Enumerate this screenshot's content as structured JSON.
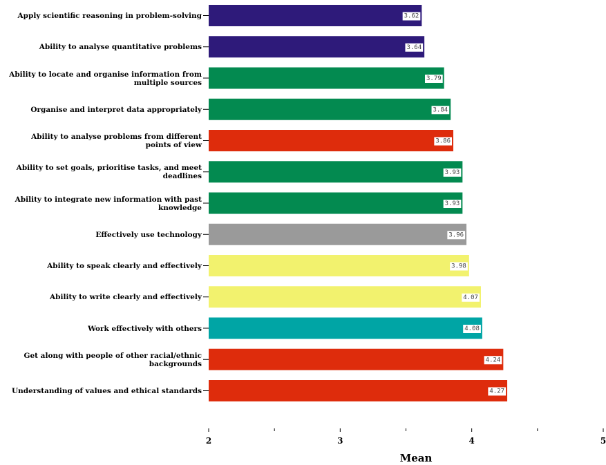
{
  "chart_data": {
    "type": "bar",
    "orientation": "horizontal",
    "x_label": "Mean",
    "categories": [
      "Apply scientific reasoning in problem-solving",
      "Ability to analyse quantitative problems",
      "Ability to locate and organise information from multiple sources",
      "Organise and interpret data appropriately",
      "Ability to analyse problems from different points of view",
      "Ability to set goals, prioritise tasks, and meet deadlines",
      "Ability to integrate new information with past knowledge",
      "Effectively use technology",
      "Ability to speak clearly and effectively",
      "Ability to write clearly and effectively",
      "Work effectively with others",
      "Get along with people of other racial/ethnic backgrounds",
      "Understanding of values and ethical standards"
    ],
    "values": [
      3.62,
      3.64,
      3.79,
      3.84,
      3.86,
      3.93,
      3.93,
      3.96,
      3.98,
      4.07,
      4.08,
      4.24,
      4.27
    ],
    "colors": [
      "#2e1a7a",
      "#2e1a7a",
      "#038a50",
      "#038a50",
      "#de2c0c",
      "#038a50",
      "#038a50",
      "#9a9a9a",
      "#f2f26e",
      "#f2f26e",
      "#00a5a5",
      "#de2c0c",
      "#de2c0c"
    ],
    "xlim": [
      2,
      5
    ],
    "xticks": [
      2,
      3,
      4,
      5
    ],
    "xminorticks": [
      2.5,
      3.5,
      4.5
    ]
  }
}
